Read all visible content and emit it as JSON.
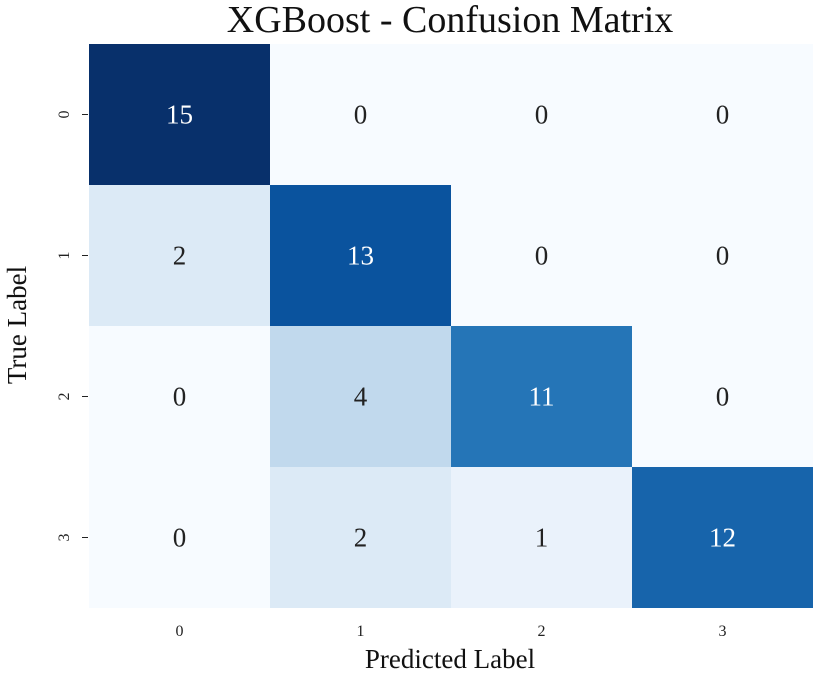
{
  "chart_data": {
    "type": "heatmap",
    "title": "XGBoost - Confusion Matrix",
    "xlabel": "Predicted Label",
    "ylabel": "True Label",
    "x_categories": [
      "0",
      "1",
      "2",
      "3"
    ],
    "y_categories": [
      "0",
      "1",
      "2",
      "3"
    ],
    "values": [
      [
        15,
        0,
        0,
        0
      ],
      [
        2,
        13,
        0,
        0
      ],
      [
        0,
        4,
        11,
        0
      ],
      [
        0,
        2,
        1,
        12
      ]
    ],
    "colormap": "Blues",
    "value_range": [
      0,
      15
    ],
    "colorbar": false,
    "annotations": true
  }
}
